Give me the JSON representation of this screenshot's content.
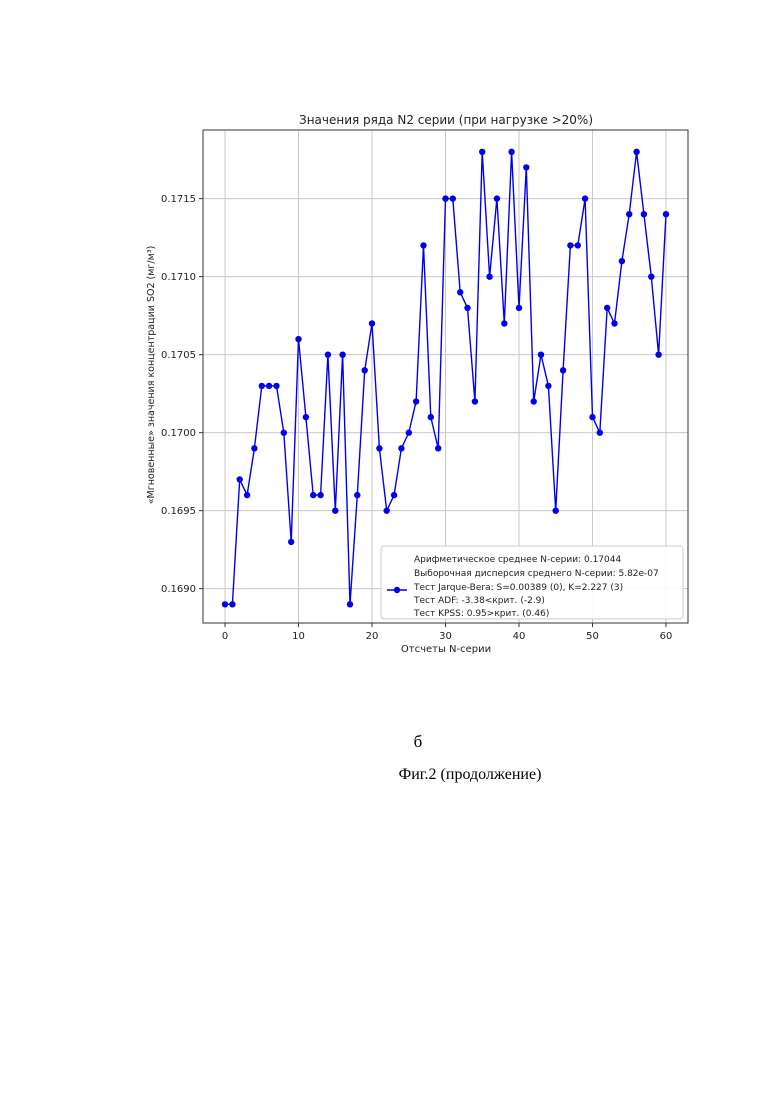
{
  "chart_data": {
    "type": "line",
    "title": "Значения ряда N2 серии (при нагрузке >20%)",
    "xlabel": "Отсчеты N-серии",
    "ylabel": "«Мгновенные» значения концентрации SO2 (мг/м³)",
    "xlim": [
      -3,
      63
    ],
    "ylim": [
      0.16878,
      0.17194
    ],
    "xticks": [
      0,
      10,
      20,
      30,
      40,
      50,
      60
    ],
    "xtick_labels": [
      "0",
      "10",
      "20",
      "30",
      "40",
      "50",
      "60"
    ],
    "yticks": [
      0.169,
      0.1695,
      0.17,
      0.1705,
      0.171,
      0.1715
    ],
    "ytick_labels": [
      "0.1690",
      "0.1695",
      "0.1700",
      "0.1705",
      "0.1710",
      "0.1715"
    ],
    "grid": true,
    "legend_position": "lower-right",
    "series": [
      {
        "x": [
          0,
          1,
          2,
          3,
          4,
          5,
          6,
          7,
          8,
          9,
          10,
          11,
          12,
          13,
          14,
          15,
          16,
          17,
          18,
          19,
          20,
          21,
          22,
          23,
          24,
          25,
          26,
          27,
          28,
          29,
          30,
          31,
          32,
          33,
          34,
          35,
          36,
          37,
          38,
          39,
          40,
          41,
          42,
          43,
          44,
          45,
          46,
          47,
          48,
          49,
          50,
          51,
          52,
          53,
          54,
          55,
          56,
          57,
          58,
          59,
          60
        ],
        "values": [
          0.1689,
          0.1689,
          0.1697,
          0.1696,
          0.1699,
          0.1703,
          0.1703,
          0.1703,
          0.17,
          0.1693,
          0.1706,
          0.1701,
          0.1696,
          0.1696,
          0.1705,
          0.1695,
          0.1705,
          0.1689,
          0.1696,
          0.1704,
          0.1707,
          0.1699,
          0.1695,
          0.1696,
          0.1699,
          0.17,
          0.1702,
          0.1712,
          0.1701,
          0.1699,
          0.1715,
          0.1715,
          0.1709,
          0.1708,
          0.1702,
          0.1718,
          0.171,
          0.1715,
          0.1707,
          0.1718,
          0.1708,
          0.1717,
          0.1702,
          0.1705,
          0.1703,
          0.1695,
          0.1704,
          0.1712,
          0.1712,
          0.1715,
          0.1701,
          0.17,
          0.1708,
          0.1707,
          0.1711,
          0.1714,
          0.1718,
          0.1714,
          0.171,
          0.1705,
          0.1714
        ]
      }
    ],
    "legend_lines": [
      "Арифметическое среднее N-серии: 0.17044",
      "Выборочная дисперсия среднего N-серии: 5.82e-07",
      "Тест Jarque-Bera: S=0.00389 (0), K=2.227 (3)",
      "Тест ADF: -3.38<крит. (-2.9)",
      "Тест KPSS: 0.95>крит. (0.46)"
    ],
    "colors": {
      "series": "#0000ee",
      "grid": "#c8c8c8",
      "axes": "#333333"
    }
  },
  "captions": {
    "letter": "б",
    "figure": "Фиг.2 (продолжение)"
  }
}
